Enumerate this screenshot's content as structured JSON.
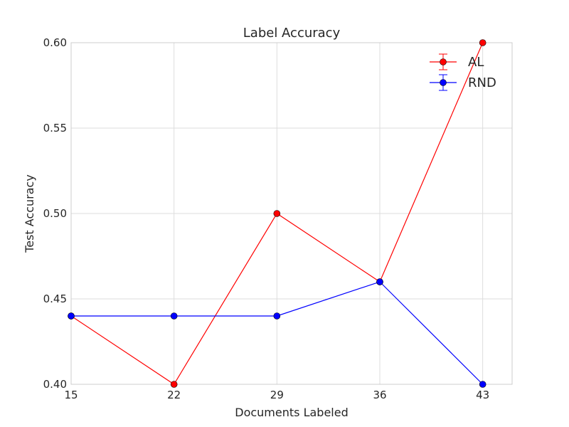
{
  "chart_data": {
    "type": "line",
    "title": "Label Accuracy",
    "xlabel": "Documents Labeled",
    "ylabel": "Test Accuracy",
    "x": [
      15,
      22,
      29,
      36,
      43
    ],
    "x_tick_labels": [
      "15",
      "22",
      "29",
      "36",
      "43"
    ],
    "y_tick_labels": [
      "0.40",
      "0.45",
      "0.50",
      "0.55",
      "0.60"
    ],
    "y_ticks": [
      0.4,
      0.45,
      0.5,
      0.55,
      0.6
    ],
    "xlim": [
      15,
      45
    ],
    "ylim": [
      0.4,
      0.6
    ],
    "grid": true,
    "legend_position": "top-right",
    "series": [
      {
        "name": "AL",
        "color": "#ff0000",
        "values": [
          0.44,
          0.4,
          0.5,
          0.46,
          0.6
        ]
      },
      {
        "name": "RND",
        "color": "#0000ff",
        "values": [
          0.44,
          0.44,
          0.44,
          0.46,
          0.4
        ]
      }
    ]
  }
}
